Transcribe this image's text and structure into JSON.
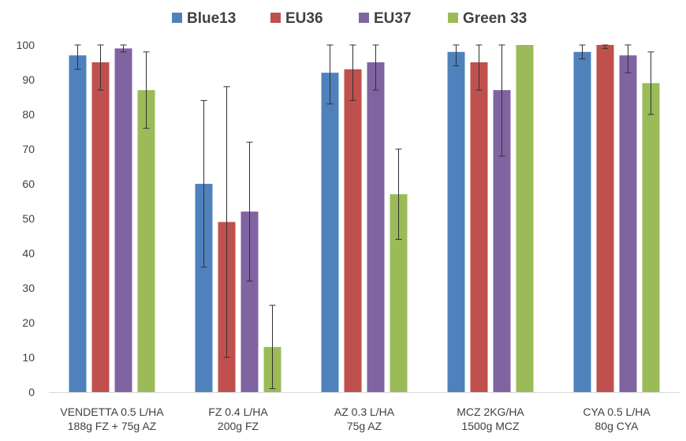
{
  "chart_data": {
    "type": "bar",
    "ylim": [
      0,
      100
    ],
    "y_ticks": [
      0,
      10,
      20,
      30,
      40,
      50,
      60,
      70,
      80,
      90,
      100
    ],
    "grid": false,
    "legend_position": "top",
    "categories": [
      [
        "VENDETTA 0.5 L/HA",
        "188g FZ + 75g AZ"
      ],
      [
        "FZ 0.4 L/HA",
        "200g FZ"
      ],
      [
        "AZ 0.3 L/HA",
        "75g AZ"
      ],
      [
        "MCZ 2KG/HA",
        "1500g MCZ"
      ],
      [
        "CYA 0.5 L/HA",
        "80g CYA"
      ]
    ],
    "series": [
      {
        "name": "Blue13",
        "color": "#4F81BD",
        "values": [
          97,
          60,
          92,
          98,
          98
        ],
        "error": [
          4,
          24,
          9,
          4,
          2
        ]
      },
      {
        "name": "EU36",
        "color": "#C0504D",
        "values": [
          95,
          49,
          93,
          95,
          100
        ],
        "error": [
          8,
          39,
          9,
          8,
          1
        ]
      },
      {
        "name": "EU37",
        "color": "#8064A2",
        "values": [
          99,
          52,
          95,
          87,
          97
        ],
        "error": [
          1,
          20,
          8,
          19,
          5
        ]
      },
      {
        "name": "Green 33",
        "color": "#9BBB59",
        "values": [
          87,
          13,
          57,
          100,
          89
        ],
        "error": [
          11,
          12,
          13,
          0,
          9
        ]
      }
    ]
  }
}
